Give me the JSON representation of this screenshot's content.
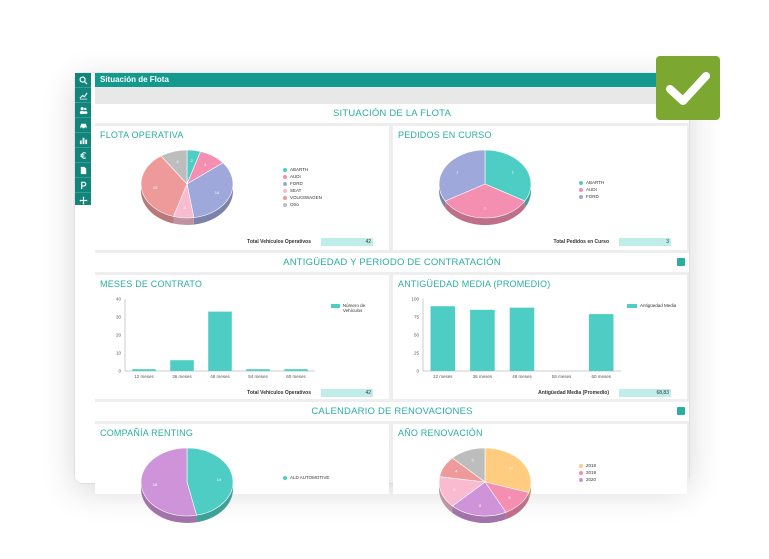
{
  "app": {
    "title": "Situación de Flota",
    "sidebar_icons": [
      "search-icon",
      "chart-line-icon",
      "users-icon",
      "car-icon",
      "bar-chart-icon",
      "euro-icon",
      "document-icon",
      "parking-icon",
      "move-icon"
    ]
  },
  "colors": {
    "teal": "#13998d",
    "accent": "#2aaea0",
    "bar": "#4ecdc4",
    "badge": "#7ca730"
  },
  "sections": {
    "situacion": "SITUACIÓN DE LA FLOTA",
    "antiguedad": "ANTIGÜEDAD Y PERIODO DE CONTRATACIÓN",
    "calendario": "CALENDARIO DE RENOVACIONES"
  },
  "flota": {
    "title": "FLOTA OPERATIVA",
    "legend": [
      "ABARTH",
      "AUDI",
      "FORD",
      "SEAT",
      "VOLKSWAGEN",
      "Otro"
    ],
    "total_label": "Total Vehículos Operativos",
    "total_value": "42"
  },
  "pedidos": {
    "title": "PEDIDOS EN CURSO",
    "legend": [
      "ABARTH",
      "AUDI",
      "FORD"
    ],
    "total_label": "Total Pedidos en Curso",
    "total_value": "3"
  },
  "meses": {
    "title": "MESES DE CONTRATO",
    "legend": "Número de Vehículos",
    "total_label": "Total Vehículos Operativos",
    "total_value": "42"
  },
  "antig_media": {
    "title": "ANTIGÜEDAD MEDIA (PROMEDIO)",
    "legend": "Antigüedad Media",
    "total_label": "Antigüedad Media (Promedio)",
    "total_value": "68,83"
  },
  "compania": {
    "title": "COMPAÑÍA RENTING",
    "legend": [
      "ALD AUTOMOTIVE"
    ]
  },
  "anio": {
    "title": "AÑO RENOVACIÓN",
    "legend": [
      "2018",
      "2019",
      "2020"
    ]
  },
  "chart_data": [
    {
      "type": "pie",
      "title": "FLOTA OPERATIVA",
      "labels": [
        "ABARTH",
        "AUDI",
        "FORD",
        "SEAT",
        "VOLKSWAGEN",
        "Otro"
      ],
      "values": [
        2,
        4,
        14,
        3,
        15,
        4
      ],
      "colors": [
        "#4ecdc4",
        "#f48fb1",
        "#9fa8da",
        "#f8bbd0",
        "#ef9a9a",
        "#bdbdbd"
      ]
    },
    {
      "type": "pie",
      "title": "PEDIDOS EN CURSO",
      "labels": [
        "ABARTH",
        "AUDI",
        "FORD"
      ],
      "values": [
        1,
        1,
        1
      ],
      "colors": [
        "#4ecdc4",
        "#f48fb1",
        "#9fa8da"
      ]
    },
    {
      "type": "bar",
      "title": "MESES DE CONTRATO",
      "categories": [
        "12 meses",
        "36 meses",
        "48 meses",
        "54 meses",
        "60 meses"
      ],
      "series": [
        {
          "name": "Número de Vehículos",
          "values": [
            1,
            6,
            33,
            1,
            1
          ]
        }
      ],
      "ylim": [
        0,
        40
      ],
      "yticks": [
        "0",
        "10",
        "20",
        "30",
        "40"
      ]
    },
    {
      "type": "bar",
      "title": "ANTIGÜEDAD MEDIA (PROMEDIO)",
      "categories": [
        "12 meses",
        "36 meses",
        "48 meses",
        "55 meses",
        "60 meses"
      ],
      "series": [
        {
          "name": "Antigüedad Media",
          "values": [
            90,
            85,
            88,
            0,
            79
          ]
        }
      ],
      "ylim": [
        0,
        100
      ],
      "yticks": [
        "0",
        "25",
        "50",
        "75",
        "100"
      ]
    },
    {
      "type": "pie",
      "title": "COMPAÑÍA RENTING",
      "labels": [
        "ALD AUTOMOTIVE",
        ""
      ],
      "values": [
        14,
        16
      ],
      "colors": [
        "#4ecdc4",
        "#ce93d8"
      ]
    },
    {
      "type": "pie",
      "title": "AÑO RENOVACIÓN",
      "labels": [
        "2018",
        "2019",
        "2020",
        "",
        "",
        ""
      ],
      "values": [
        12,
        5,
        8,
        6,
        4,
        5
      ],
      "colors": [
        "#ffcc80",
        "#f48fb1",
        "#ce93d8",
        "#f8bbd0",
        "#ef9a9a",
        "#bdbdbd"
      ]
    }
  ]
}
